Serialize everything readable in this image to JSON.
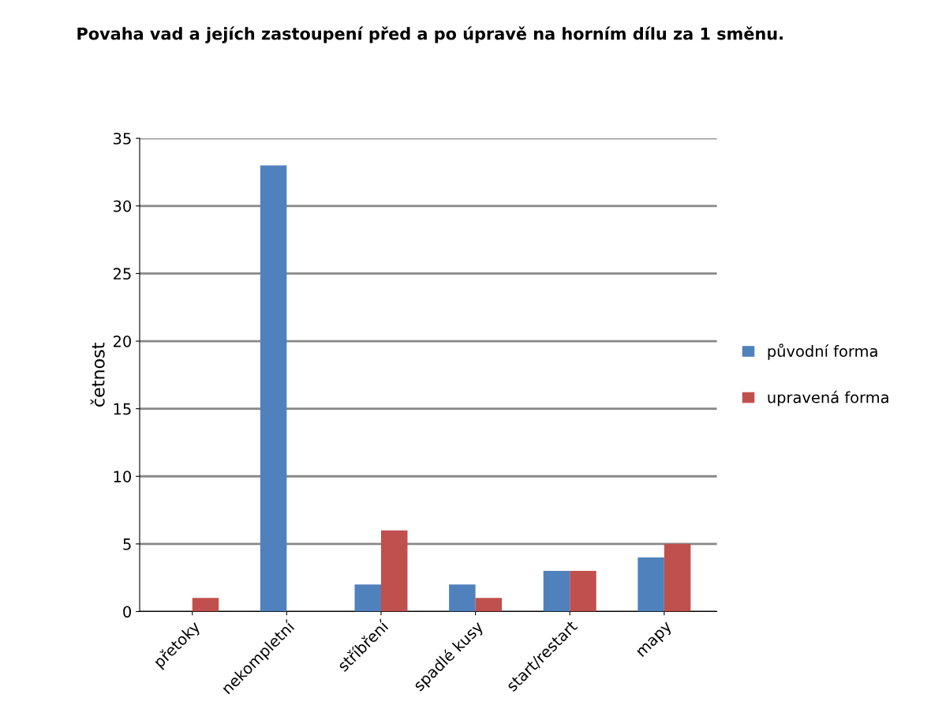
{
  "chart_data": {
    "type": "bar",
    "title": "Povaha vad a jejích zastoupení před a po úpravě na horním dílu za 1 směnu.",
    "ylabel": "četnost",
    "categories": [
      "přetoky",
      "nekompletní",
      "stříbření",
      "spadlé kusy",
      "start/restart",
      "mapy"
    ],
    "series": [
      {
        "name": "původní forma",
        "color": "#4f81bd",
        "values": [
          0,
          33,
          2,
          2,
          3,
          4
        ]
      },
      {
        "name": "upravená forma",
        "color": "#c0504d",
        "values": [
          1,
          0,
          6,
          1,
          3,
          5
        ]
      }
    ],
    "ylim": [
      0,
      35
    ],
    "yticks": [
      0,
      5,
      10,
      15,
      20,
      25,
      30,
      35
    ],
    "grid": "y",
    "legend": "right"
  }
}
